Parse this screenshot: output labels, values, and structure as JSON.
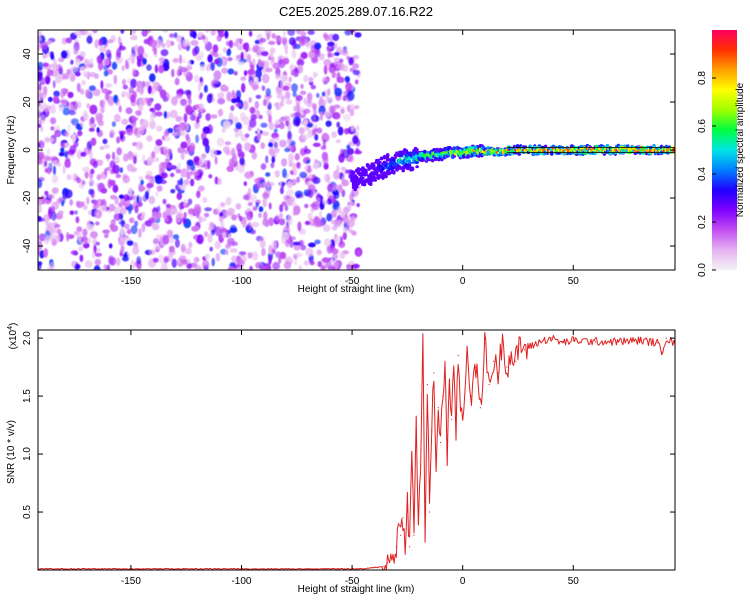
{
  "title": "C2E5.2025.289.07.16.R22",
  "chart_data": [
    {
      "type": "heatmap",
      "xlabel": "Height of straight line (km)",
      "ylabel": "Frequency (Hz)",
      "xlim": [
        -192,
        96
      ],
      "ylim": [
        -50,
        50
      ],
      "xticks": [
        -150,
        -100,
        -50,
        0,
        50
      ],
      "yticks": [
        -40,
        -20,
        0,
        20,
        40
      ],
      "colorbar": {
        "label": "Normalized spectral amplitude",
        "range": [
          0.0,
          1.0
        ],
        "ticks": [
          0.0,
          0.2,
          0.4,
          0.6,
          0.8
        ],
        "colors": [
          "#f2f2f2",
          "#e6b3f2",
          "#c14df2",
          "#8000ff",
          "#2000ff",
          "#0080ff",
          "#00e5e5",
          "#00ff40",
          "#a0ff00",
          "#ffff00",
          "#ffa000",
          "#ff3000",
          "#ff0060"
        ]
      },
      "noise_region": {
        "x": [
          -192,
          -47
        ],
        "y": [
          -50,
          50
        ],
        "amplitude_range": [
          0.0,
          0.15
        ]
      },
      "signal_trace": {
        "x": [
          -50,
          -45,
          -40,
          -35,
          -30,
          -25,
          -20,
          -15,
          -10,
          -5,
          0,
          10,
          20,
          30,
          50,
          70,
          96
        ],
        "freq": [
          -13,
          -11,
          -9,
          -7,
          -5,
          -4,
          -3,
          -2,
          -1.5,
          -1,
          -0.8,
          -0.5,
          -0.3,
          -0.2,
          0,
          0,
          0
        ],
        "amplitude": [
          0.15,
          0.2,
          0.3,
          0.4,
          0.5,
          0.55,
          0.6,
          0.65,
          0.7,
          0.75,
          0.8,
          0.9,
          0.95,
          0.97,
          0.98,
          0.98,
          0.98
        ]
      },
      "grid": false
    },
    {
      "type": "line",
      "xlabel": "Height of straight line (km)",
      "ylabel": "SNR (10 * v/v)",
      "y_multiplier": "(x10",
      "y_multiplier_exp": "4",
      "y_multiplier_close": ")",
      "xlim": [
        -192,
        96
      ],
      "ylim": [
        0,
        2.07
      ],
      "xticks": [
        -150,
        -100,
        -50,
        0,
        50
      ],
      "yticks": [
        0.5,
        1.0,
        1.5,
        2.0
      ],
      "ytick_labels": [
        "0.5",
        "1.0",
        "1.5",
        "2.0"
      ],
      "color": "#e02020",
      "grid": false,
      "series": [
        {
          "x": [
            -192,
            -150,
            -100,
            -60,
            -45,
            -40,
            -36,
            -34,
            -32,
            -30,
            -29,
            -28,
            -27,
            -26,
            -25,
            -24,
            -23,
            -22,
            -21,
            -20,
            -19,
            -18,
            -17,
            -16,
            -15,
            -14,
            -13,
            -12,
            -11,
            -10,
            -9,
            -8,
            -7,
            -6,
            -5,
            -4,
            -3,
            -2,
            -1,
            0,
            2,
            4,
            6,
            8,
            10,
            12,
            14,
            16,
            18,
            20,
            22,
            24,
            26,
            28,
            30,
            35,
            40,
            45,
            50,
            60,
            70,
            80,
            88,
            90,
            92,
            96
          ],
          "values": [
            0.01,
            0.01,
            0.01,
            0.01,
            0.01,
            0.02,
            0.03,
            0.06,
            0.1,
            0.2,
            0.4,
            0.3,
            0.45,
            0.25,
            0.6,
            0.2,
            1.0,
            0.3,
            1.3,
            0.4,
            0.9,
            1.95,
            0.3,
            1.6,
            0.5,
            1.2,
            1.7,
            0.9,
            1.4,
            1.1,
            1.5,
            1.8,
            1.0,
            1.6,
            1.3,
            1.7,
            1.2,
            1.85,
            1.4,
            1.3,
            1.9,
            1.5,
            1.75,
            1.4,
            1.95,
            1.6,
            1.8,
            1.7,
            2.0,
            1.75,
            1.85,
            1.8,
            1.95,
            1.9,
            1.92,
            1.97,
            2.0,
            1.96,
            1.98,
            1.97,
            1.97,
            1.98,
            1.96,
            1.88,
            2.0,
            1.95
          ]
        }
      ]
    }
  ]
}
